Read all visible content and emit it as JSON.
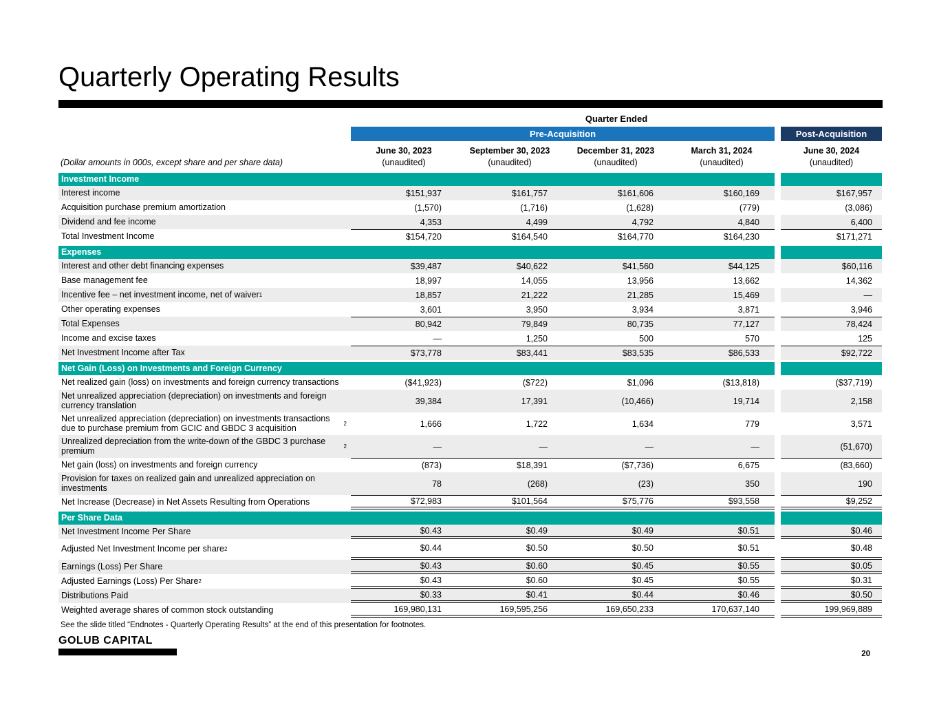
{
  "page": {
    "title": "Quarterly Operating Results",
    "footnote": "See the slide titled “Endnotes - Quarterly Operating Results” at the end of this presentation for footnotes.",
    "logo_text": "GOLUB CAPITAL",
    "page_number": "20"
  },
  "colors": {
    "section_teal": "#00a79d",
    "pre_acquisition_blue": "#1b75bc",
    "post_acquisition_navy": "#1b3a64",
    "row_shade_gray": "#ececec"
  },
  "table": {
    "quarter_ended": "Quarter Ended",
    "pre_label": "Pre-Acquisition",
    "post_label": "Post-Acquisition",
    "dollar_note": "(Dollar amounts in 000s, except share and per share data)",
    "columns": [
      {
        "date": "June 30, 2023",
        "note": "(unaudited)"
      },
      {
        "date": "September 30, 2023",
        "note": "(unaudited)"
      },
      {
        "date": "December 31, 2023",
        "note": "(unaudited)"
      },
      {
        "date": "March 31, 2024",
        "note": "(unaudited)"
      },
      {
        "date": "June 30, 2024",
        "note": "(unaudited)"
      }
    ],
    "sections": [
      {
        "title": "Investment Income",
        "rows": [
          {
            "label": "Interest income",
            "values": [
              "$151,937",
              "$161,757",
              "$161,606",
              "$160,169",
              "$167,957"
            ],
            "shade": true
          },
          {
            "label": "Acquisition purchase premium amortization",
            "values": [
              "(1,570)",
              "(1,716)",
              "(1,628)",
              "(779)",
              "(3,086)"
            ]
          },
          {
            "label": "Dividend and fee income",
            "values": [
              "4,353",
              "4,499",
              "4,792",
              "4,840",
              "6,400"
            ],
            "shade": true
          },
          {
            "label": "Total Investment Income",
            "values": [
              "$154,720",
              "$164,540",
              "$164,770",
              "$164,230",
              "$171,271"
            ],
            "topline": true
          }
        ]
      },
      {
        "title": "Expenses",
        "rows": [
          {
            "label": "Interest and other debt financing expenses",
            "values": [
              "$39,487",
              "$40,622",
              "$41,560",
              "$44,125",
              "$60,116"
            ],
            "shade": true
          },
          {
            "label": "Base management fee",
            "values": [
              "18,997",
              "14,055",
              "13,956",
              "13,662",
              "14,362"
            ]
          },
          {
            "label": "Incentive fee – net investment income, net of waiver",
            "sup": "1",
            "values": [
              "18,857",
              "21,222",
              "21,285",
              "15,469",
              "—"
            ],
            "shade": true
          },
          {
            "label": "Other operating expenses",
            "values": [
              "3,601",
              "3,950",
              "3,934",
              "3,871",
              "3,946"
            ]
          },
          {
            "label": "Total Expenses",
            "values": [
              "80,942",
              "79,849",
              "80,735",
              "77,127",
              "78,424"
            ],
            "shade": true,
            "topline": true
          },
          {
            "label": "Income and excise taxes",
            "values": [
              "—",
              "1,250",
              "500",
              "570",
              "125"
            ]
          },
          {
            "label": "Net Investment Income after Tax",
            "values": [
              "$73,778",
              "$83,441",
              "$83,535",
              "$86,533",
              "$92,722"
            ],
            "shade": true,
            "topline": true
          }
        ]
      },
      {
        "title": "Net Gain (Loss) on Investments and Foreign Currency",
        "rows": [
          {
            "label": "Net realized gain (loss) on investments and foreign currency transactions",
            "values": [
              "($41,923)",
              "($722)",
              "$1,096",
              "($13,818)",
              "($37,719)"
            ]
          },
          {
            "label": "Net unrealized appreciation (depreciation) on investments and foreign currency translation",
            "values": [
              "39,384",
              "17,391",
              "(10,466)",
              "19,714",
              "2,158"
            ],
            "shade": true,
            "tall": true
          },
          {
            "label": "Net unrealized appreciation (depreciation) on investments transactions due to purchase premium from GCIC and GBDC 3 acquisition",
            "sup": "2",
            "values": [
              "1,666",
              "1,722",
              "1,634",
              "779",
              "3,571"
            ],
            "tall": true
          },
          {
            "label": "Unrealized depreciation from the write-down of the GBDC 3 purchase premium",
            "sup": "2",
            "values": [
              "—",
              "—",
              "—",
              "—",
              "(51,670)"
            ],
            "shade": true,
            "tall": true
          },
          {
            "label": "Net gain (loss) on investments and foreign currency",
            "values": [
              "(873)",
              "$18,391",
              "($7,736)",
              "6,675",
              "(83,660)"
            ],
            "topline": true
          },
          {
            "label": "Provision for taxes on realized gain and unrealized appreciation on investments",
            "values": [
              "78",
              "(268)",
              "(23)",
              "350",
              "190"
            ],
            "shade": true,
            "tall": true
          },
          {
            "label": "Net Increase (Decrease) in Net Assets Resulting from Operations",
            "values": [
              "$72,983",
              "$101,564",
              "$75,776",
              "$93,558",
              "$9,252"
            ],
            "topline": true,
            "dbl": true
          }
        ]
      },
      {
        "title": "Per Share Data",
        "rows": [
          {
            "label": "Net Investment Income Per Share",
            "values": [
              "$0.43",
              "$0.49",
              "$0.49",
              "$0.51",
              "$0.46"
            ],
            "shade": true,
            "dbl": true
          },
          {
            "label": "Adjusted Net Investment Income per share",
            "sup": "2",
            "values": [
              "$0.44",
              "$0.50",
              "$0.50",
              "$0.51",
              "$0.48"
            ],
            "dbl": true,
            "roomy": true
          },
          {
            "label": "Earnings (Loss) Per Share",
            "values": [
              "$0.43",
              "$0.60",
              "$0.45",
              "$0.55",
              "$0.05"
            ],
            "shade": true,
            "dbl": true
          },
          {
            "label": "Adjusted Earnings (Loss) Per Share",
            "sup": "2",
            "values": [
              "$0.43",
              "$0.60",
              "$0.45",
              "$0.55",
              "$0.31"
            ],
            "dbl": true
          },
          {
            "label": "Distributions Paid",
            "values": [
              "$0.33",
              "$0.41",
              "$0.44",
              "$0.46",
              "$0.50"
            ],
            "shade": true,
            "dbl": true
          },
          {
            "label": "Weighted average shares of common stock outstanding",
            "values": [
              "169,980,131",
              "169,595,256",
              "169,650,233",
              "170,637,140",
              "199,969,889"
            ],
            "dbl": true
          }
        ]
      }
    ]
  }
}
